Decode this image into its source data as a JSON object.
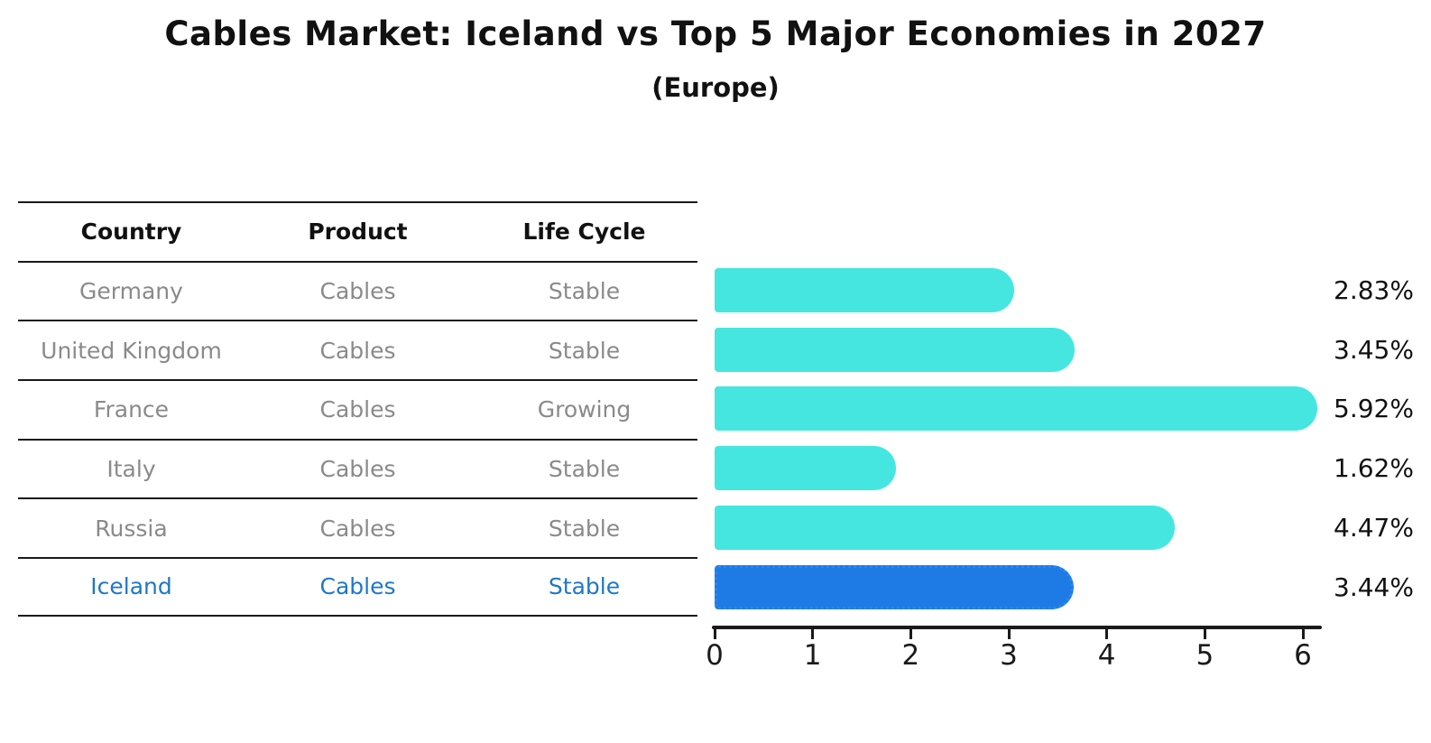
{
  "table": {
    "headers": [
      "Country",
      "Product",
      "Life Cycle"
    ],
    "rows": [
      {
        "country": "Germany",
        "product": "Cables",
        "life_cycle": "Stable",
        "highlight": false
      },
      {
        "country": "United Kingdom",
        "product": "Cables",
        "life_cycle": "Stable",
        "highlight": false
      },
      {
        "country": "France",
        "product": "Cables",
        "life_cycle": "Growing",
        "highlight": false
      },
      {
        "country": "Italy",
        "product": "Cables",
        "life_cycle": "Stable",
        "highlight": false
      },
      {
        "country": "Russia",
        "product": "Cables",
        "life_cycle": "Stable",
        "highlight": false
      },
      {
        "country": "Iceland",
        "product": "Cables",
        "life_cycle": "Stable",
        "highlight": true
      }
    ]
  },
  "chart_data": {
    "type": "bar",
    "orientation": "horizontal",
    "title": "Cables Market: Iceland vs Top 5 Major Economies in 2027",
    "subtitle": "(Europe)",
    "categories": [
      "Germany",
      "United Kingdom",
      "France",
      "Italy",
      "Russia",
      "Iceland"
    ],
    "values": [
      2.83,
      3.45,
      5.92,
      1.62,
      4.47,
      3.44
    ],
    "value_labels": [
      "2.83%",
      "3.45%",
      "5.92%",
      "1.62%",
      "4.47%",
      "3.44%"
    ],
    "xlim": [
      0,
      6
    ],
    "xticks": [
      "0",
      "1",
      "2",
      "3",
      "4",
      "5",
      "6"
    ],
    "highlight_index": 5,
    "grid": false,
    "legend_position": "none",
    "colors": {
      "bar": "#45E6DF",
      "highlight_bar": "#1E7BE5",
      "highlight_text": "#1f77c8",
      "row_text": "#8a8a8a",
      "axis": "#1a1a1a",
      "value_label": "#111111"
    }
  }
}
